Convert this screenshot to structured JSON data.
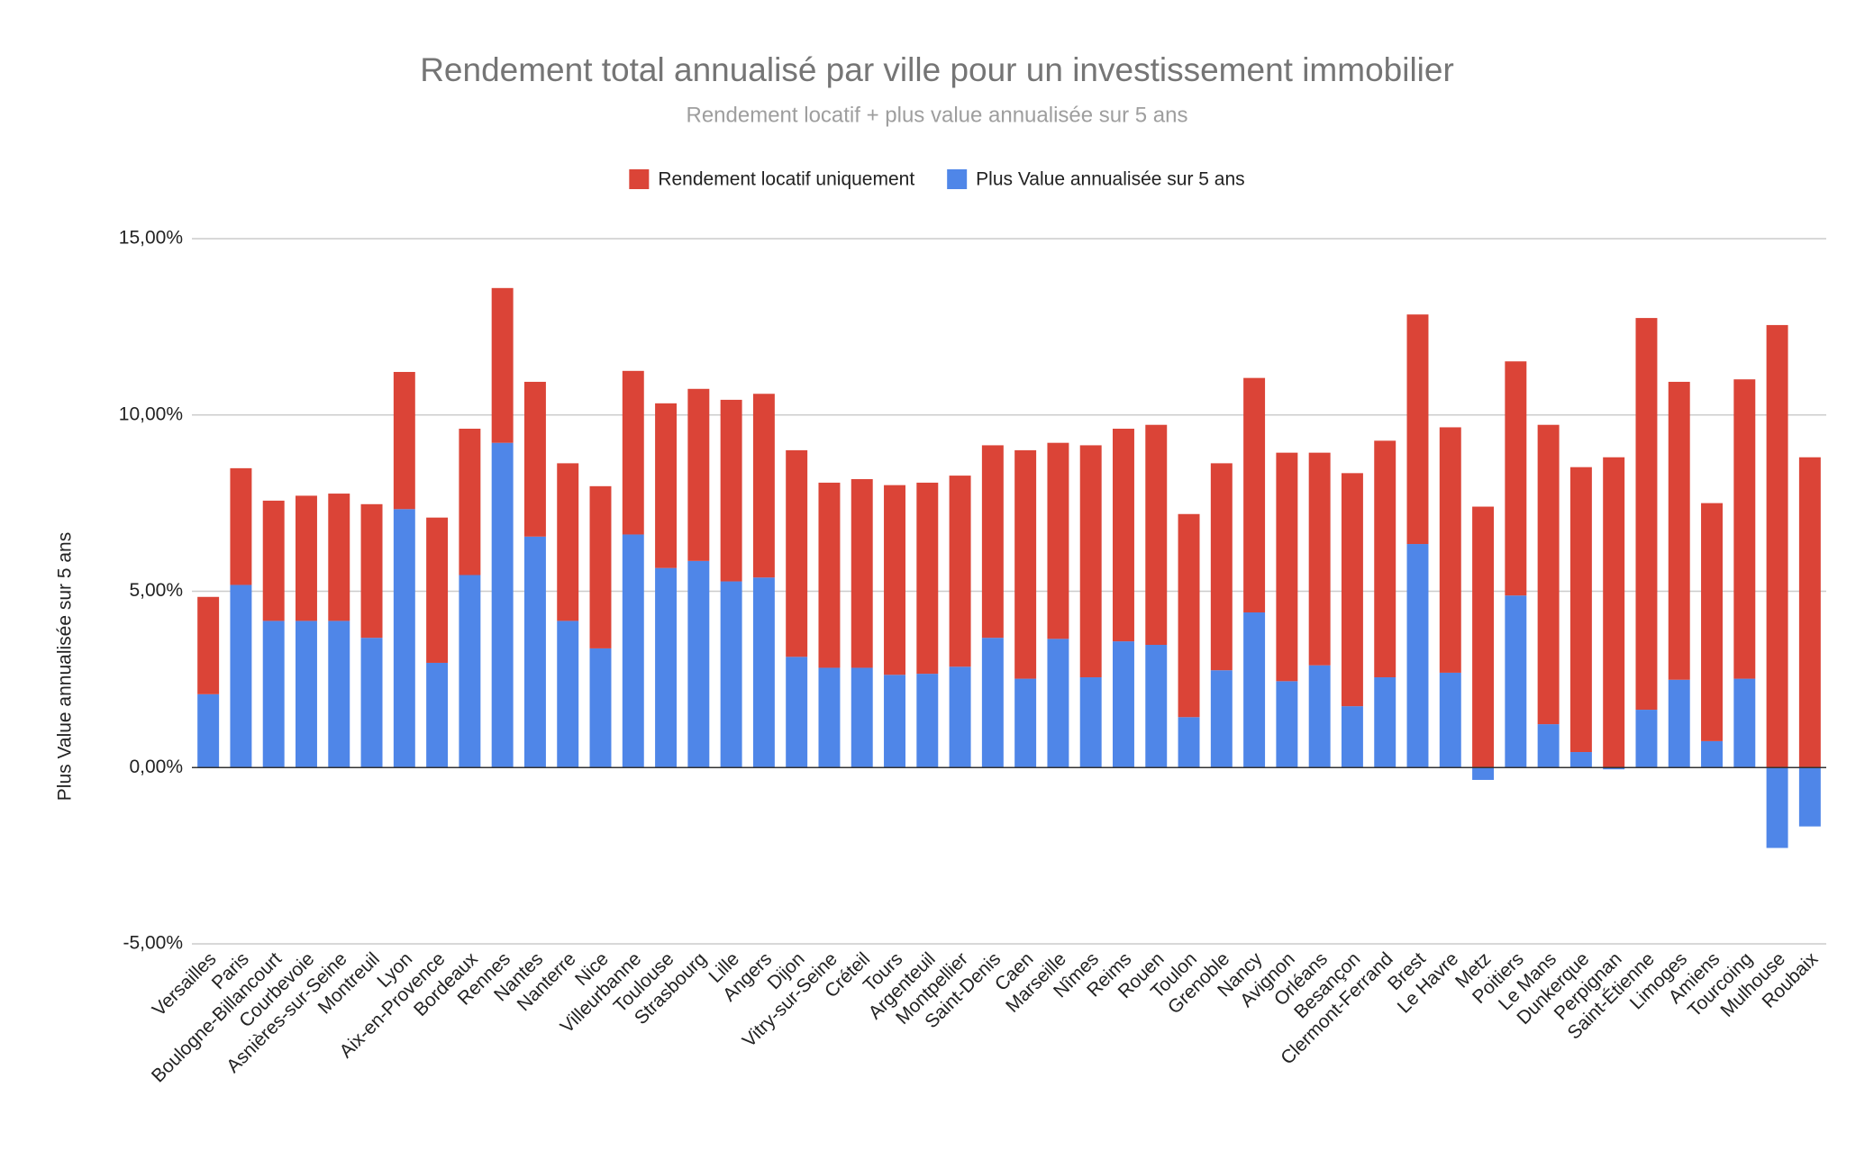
{
  "chart_data": {
    "type": "stacked-bar",
    "title": "Rendement total annualisé par ville pour un investissement immobilier",
    "subtitle": "Rendement locatif + plus value annualisée sur 5 ans",
    "y_label": "Plus Value annualisée sur 5 ans",
    "categories": [
      "Versailles",
      "Paris",
      "Boulogne-Billancourt",
      "Courbevoie",
      "Asnières-sur-Seine",
      "Montreuil",
      "Lyon",
      "Aix-en-Provence",
      "Bordeaux",
      "Rennes",
      "Nantes",
      "Nanterre",
      "Nice",
      "Villeurbanne",
      "Toulouse",
      "Strasbourg",
      "Lille",
      "Angers",
      "Dijon",
      "Vitry-sur-Seine",
      "Créteil",
      "Tours",
      "Argenteuil",
      "Montpellier",
      "Saint-Denis",
      "Caen",
      "Marseille",
      "Nîmes",
      "Reims",
      "Rouen",
      "Toulon",
      "Grenoble",
      "Nancy",
      "Avignon",
      "Orléans",
      "Besançon",
      "Clermont-Ferrand",
      "Brest",
      "Le Havre",
      "Metz",
      "Poitiers",
      "Le Mans",
      "Dunkerque",
      "Perpignan",
      "Saint-Étienne",
      "Limoges",
      "Amiens",
      "Tourcoing",
      "Mulhouse",
      "Roubaix"
    ],
    "series": [
      {
        "name": "Rendement locatif uniquement",
        "color": "#db4437",
        "values": [
          2.76,
          3.31,
          3.41,
          3.55,
          3.61,
          3.79,
          3.89,
          4.12,
          4.15,
          4.39,
          4.39,
          4.47,
          4.6,
          4.64,
          4.67,
          4.88,
          5.15,
          5.21,
          5.86,
          5.25,
          5.35,
          5.38,
          5.42,
          5.42,
          5.46,
          6.48,
          5.56,
          6.58,
          6.03,
          6.24,
          5.76,
          5.87,
          6.65,
          6.48,
          6.03,
          6.61,
          6.71,
          6.51,
          6.96,
          7.4,
          6.64,
          8.49,
          8.08,
          8.8,
          11.11,
          8.45,
          6.75,
          8.49,
          12.55,
          8.8
        ]
      },
      {
        "name": "Plus Value annualisée sur 5 ans",
        "color": "#4f86e8",
        "values": [
          2.08,
          5.18,
          4.16,
          4.16,
          4.16,
          3.68,
          7.33,
          2.97,
          5.46,
          9.21,
          6.55,
          4.16,
          3.38,
          6.61,
          5.66,
          5.86,
          5.28,
          5.39,
          3.14,
          2.83,
          2.83,
          2.63,
          2.66,
          2.86,
          3.68,
          2.52,
          3.65,
          2.56,
          3.58,
          3.48,
          1.43,
          2.76,
          4.4,
          2.45,
          2.9,
          1.74,
          2.56,
          6.34,
          2.69,
          -0.35,
          4.88,
          1.23,
          0.44,
          -0.05,
          1.64,
          2.49,
          0.75,
          2.52,
          -2.28,
          -1.67
        ]
      }
    ],
    "ylim": [
      -5,
      15
    ],
    "yticks": [
      {
        "value": -5,
        "label": "-5,00%"
      },
      {
        "value": 0,
        "label": "0,00%"
      },
      {
        "value": 5,
        "label": "5,00%"
      },
      {
        "value": 10,
        "label": "10,00%"
      },
      {
        "value": 15,
        "label": "15,00%"
      }
    ],
    "grid": true,
    "legend": "top"
  }
}
